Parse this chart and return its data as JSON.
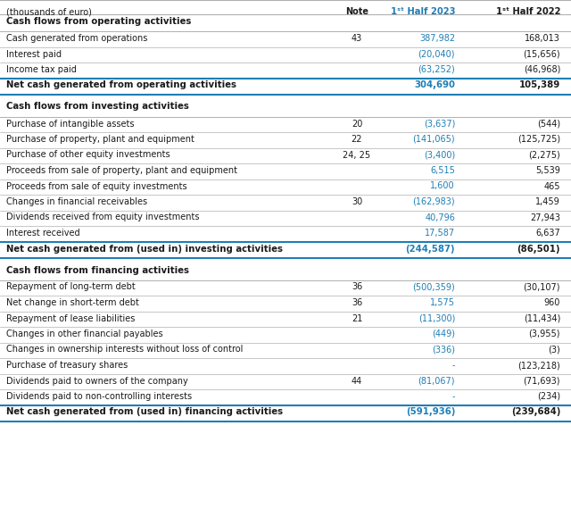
{
  "header": "(thousands of euro)",
  "col_note": "Note",
  "col_2023": "1ˢᵗ Half 2023",
  "col_2022": "1ˢᵗ Half 2022",
  "bg_color": "#ffffff",
  "text_color": "#1a1a1a",
  "blue_color": "#1e7eb5",
  "dark_line_color": "#1e7eb5",
  "gray_line_color": "#b0b0b0",
  "rows": [
    {
      "label": "Cash flows from operating activities",
      "note": "",
      "val2023": "",
      "val2022": "",
      "type": "section"
    },
    {
      "label": "Cash generated from operations",
      "note": "43",
      "val2023": "387,982",
      "val2022": "168,013",
      "type": "data",
      "blue2023": true
    },
    {
      "label": "Interest paid",
      "note": "",
      "val2023": "(20,040)",
      "val2022": "(15,656)",
      "type": "data",
      "blue2023": true
    },
    {
      "label": "Income tax paid",
      "note": "",
      "val2023": "(63,252)",
      "val2022": "(46,968)",
      "type": "data",
      "blue2023": true
    },
    {
      "label": "Net cash generated from operating activities",
      "note": "",
      "val2023": "304,690",
      "val2022": "105,389",
      "type": "subtotal"
    },
    {
      "label": "",
      "note": "",
      "val2023": "",
      "val2022": "",
      "type": "spacer"
    },
    {
      "label": "Cash flows from investing activities",
      "note": "",
      "val2023": "",
      "val2022": "",
      "type": "section"
    },
    {
      "label": "Purchase of intangible assets",
      "note": "20",
      "val2023": "(3,637)",
      "val2022": "(544)",
      "type": "data",
      "blue2023": true
    },
    {
      "label": "Purchase of property, plant and equipment",
      "note": "22",
      "val2023": "(141,065)",
      "val2022": "(125,725)",
      "type": "data",
      "blue2023": true
    },
    {
      "label": "Purchase of other equity investments",
      "note": "24, 25",
      "val2023": "(3,400)",
      "val2022": "(2,275)",
      "type": "data",
      "blue2023": true
    },
    {
      "label": "Proceeds from sale of property, plant and equipment",
      "note": "",
      "val2023": "6,515",
      "val2022": "5,539",
      "type": "data",
      "blue2023": true
    },
    {
      "label": "Proceeds from sale of equity investments",
      "note": "",
      "val2023": "1,600",
      "val2022": "465",
      "type": "data",
      "blue2023": true
    },
    {
      "label": "Changes in financial receivables",
      "note": "30",
      "val2023": "(162,983)",
      "val2022": "1,459",
      "type": "data",
      "blue2023": true
    },
    {
      "label": "Dividends received from equity investments",
      "note": "",
      "val2023": "40,796",
      "val2022": "27,943",
      "type": "data",
      "blue2023": true
    },
    {
      "label": "Interest received",
      "note": "",
      "val2023": "17,587",
      "val2022": "6,637",
      "type": "data",
      "blue2023": true
    },
    {
      "label": "Net cash generated from (used in) investing activities",
      "note": "",
      "val2023": "(244,587)",
      "val2022": "(86,501)",
      "type": "subtotal"
    },
    {
      "label": "",
      "note": "",
      "val2023": "",
      "val2022": "",
      "type": "spacer"
    },
    {
      "label": "Cash flows from financing activities",
      "note": "",
      "val2023": "",
      "val2022": "",
      "type": "section"
    },
    {
      "label": "Repayment of long-term debt",
      "note": "36",
      "val2023": "(500,359)",
      "val2022": "(30,107)",
      "type": "data",
      "blue2023": true
    },
    {
      "label": "Net change in short-term debt",
      "note": "36",
      "val2023": "1,575",
      "val2022": "960",
      "type": "data",
      "blue2023": true
    },
    {
      "label": "Repayment of lease liabilities",
      "note": "21",
      "val2023": "(11,300)",
      "val2022": "(11,434)",
      "type": "data",
      "blue2023": true
    },
    {
      "label": "Changes in other financial payables",
      "note": "",
      "val2023": "(449)",
      "val2022": "(3,955)",
      "type": "data",
      "blue2023": true
    },
    {
      "label": "Changes in ownership interests without loss of control",
      "note": "",
      "val2023": "(336)",
      "val2022": "(3)",
      "type": "data",
      "blue2023": true
    },
    {
      "label": "Purchase of treasury shares",
      "note": "",
      "val2023": "-",
      "val2022": "(123,218)",
      "type": "data",
      "blue2023": true
    },
    {
      "label": "Dividends paid to owners of the company",
      "note": "44",
      "val2023": "(81,067)",
      "val2022": "(71,693)",
      "type": "data",
      "blue2023": true
    },
    {
      "label": "Dividends paid to non-controlling interests",
      "note": "",
      "val2023": "-",
      "val2022": "(234)",
      "type": "data",
      "blue2023": true
    },
    {
      "label": "Net cash generated from (used in) financing activities",
      "note": "",
      "val2023": "(591,936)",
      "val2022": "(239,684)",
      "type": "subtotal"
    }
  ]
}
